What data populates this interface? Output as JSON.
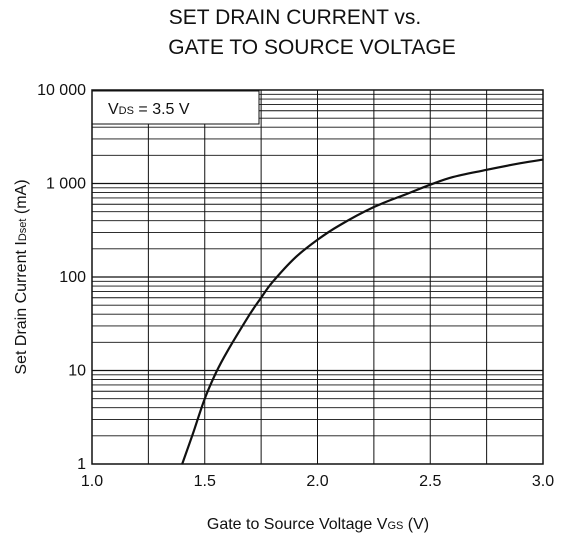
{
  "chart_data": {
    "type": "line",
    "title": [
      "SET DRAIN CURRENT vs.",
      "GATE TO SOURCE VOLTAGE"
    ],
    "xlabel": {
      "main": "Gate to Source Voltage  V",
      "sub": "GS",
      "unit": " (V)"
    },
    "ylabel": {
      "main": "Set Drain Current  I",
      "sub": "Dset",
      "unit": " (mA)"
    },
    "annotation": {
      "main": "V",
      "sub": "DS",
      "rest": " = 3.5 V"
    },
    "xlim": [
      1.0,
      3.0
    ],
    "ylim": [
      1,
      10000
    ],
    "yscale": "log",
    "grid": true,
    "x_ticks": [
      {
        "value": 1.0,
        "label": "1.0"
      },
      {
        "value": 1.5,
        "label": "1.5"
      },
      {
        "value": 2.0,
        "label": "2.0"
      },
      {
        "value": 2.5,
        "label": "2.5"
      },
      {
        "value": 3.0,
        "label": "3.0"
      }
    ],
    "y_ticks": [
      {
        "value": 1,
        "label": "1"
      },
      {
        "value": 10,
        "label": "10"
      },
      {
        "value": 100,
        "label": "100"
      },
      {
        "value": 1000,
        "label": "1 000"
      },
      {
        "value": 10000,
        "label": "10 000"
      }
    ],
    "series": [
      {
        "x": [
          1.4,
          1.45,
          1.5,
          1.55,
          1.6,
          1.7,
          1.75,
          1.8,
          1.9,
          2.0,
          2.1,
          2.25,
          2.4,
          2.5,
          2.6,
          2.75,
          2.9,
          3.0
        ],
        "y": [
          1,
          2.2,
          5,
          9.5,
          16,
          40,
          60,
          88,
          160,
          250,
          360,
          560,
          780,
          970,
          1170,
          1400,
          1650,
          1800
        ]
      }
    ]
  }
}
